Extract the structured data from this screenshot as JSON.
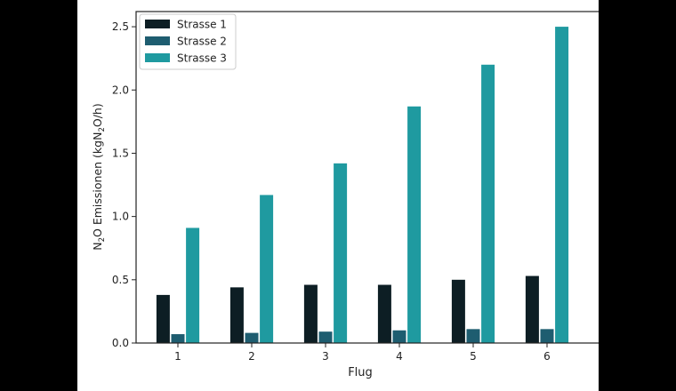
{
  "chart_data": {
    "type": "bar",
    "xlabel": "Flug",
    "ylabel_parts": [
      "N",
      "2",
      "O Emissionen (kgN",
      "2",
      "O/h)"
    ],
    "categories": [
      "1",
      "2",
      "3",
      "4",
      "5",
      "6"
    ],
    "ylim": [
      0,
      2.62
    ],
    "yticks": [
      "0.0",
      "0.5",
      "1.0",
      "1.5",
      "2.0",
      "2.5"
    ],
    "grid": false,
    "legend_position": "upper-left",
    "series": [
      {
        "name": "Strasse 1",
        "color": "#0d1e24",
        "values": [
          0.38,
          0.44,
          0.46,
          0.46,
          0.5,
          0.53
        ]
      },
      {
        "name": "Strasse 2",
        "color": "#1e5d70",
        "values": [
          0.07,
          0.08,
          0.09,
          0.1,
          0.11,
          0.11
        ]
      },
      {
        "name": "Strasse 3",
        "color": "#1f9aa0",
        "values": [
          0.91,
          1.17,
          1.42,
          1.87,
          2.2,
          2.5
        ]
      }
    ]
  }
}
